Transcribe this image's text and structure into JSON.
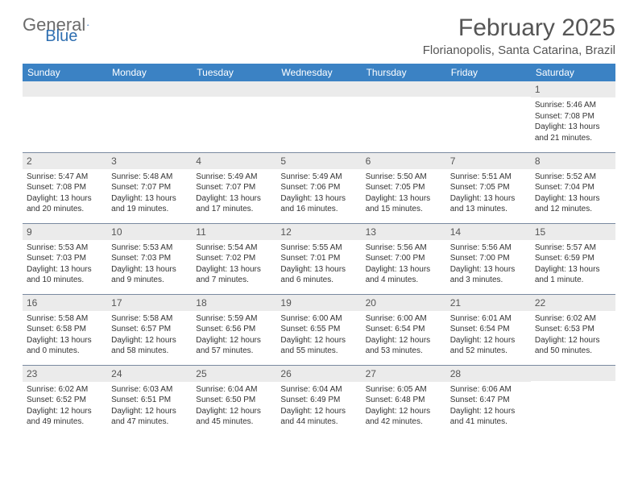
{
  "logo": {
    "text1": "General",
    "text2": "Blue"
  },
  "title": "February 2025",
  "location": "Florianopolis, Santa Catarina, Brazil",
  "header_color": "#3b82c4",
  "row_divider_color": "#7a8aa0",
  "daynum_bg": "#ebebeb",
  "weekdays": [
    "Sunday",
    "Monday",
    "Tuesday",
    "Wednesday",
    "Thursday",
    "Friday",
    "Saturday"
  ],
  "cells": [
    {
      "day": "",
      "sunrise": "",
      "sunset": "",
      "daylight": ""
    },
    {
      "day": "",
      "sunrise": "",
      "sunset": "",
      "daylight": ""
    },
    {
      "day": "",
      "sunrise": "",
      "sunset": "",
      "daylight": ""
    },
    {
      "day": "",
      "sunrise": "",
      "sunset": "",
      "daylight": ""
    },
    {
      "day": "",
      "sunrise": "",
      "sunset": "",
      "daylight": ""
    },
    {
      "day": "",
      "sunrise": "",
      "sunset": "",
      "daylight": ""
    },
    {
      "day": "1",
      "sunrise": "Sunrise: 5:46 AM",
      "sunset": "Sunset: 7:08 PM",
      "daylight": "Daylight: 13 hours and 21 minutes."
    },
    {
      "day": "2",
      "sunrise": "Sunrise: 5:47 AM",
      "sunset": "Sunset: 7:08 PM",
      "daylight": "Daylight: 13 hours and 20 minutes."
    },
    {
      "day": "3",
      "sunrise": "Sunrise: 5:48 AM",
      "sunset": "Sunset: 7:07 PM",
      "daylight": "Daylight: 13 hours and 19 minutes."
    },
    {
      "day": "4",
      "sunrise": "Sunrise: 5:49 AM",
      "sunset": "Sunset: 7:07 PM",
      "daylight": "Daylight: 13 hours and 17 minutes."
    },
    {
      "day": "5",
      "sunrise": "Sunrise: 5:49 AM",
      "sunset": "Sunset: 7:06 PM",
      "daylight": "Daylight: 13 hours and 16 minutes."
    },
    {
      "day": "6",
      "sunrise": "Sunrise: 5:50 AM",
      "sunset": "Sunset: 7:05 PM",
      "daylight": "Daylight: 13 hours and 15 minutes."
    },
    {
      "day": "7",
      "sunrise": "Sunrise: 5:51 AM",
      "sunset": "Sunset: 7:05 PM",
      "daylight": "Daylight: 13 hours and 13 minutes."
    },
    {
      "day": "8",
      "sunrise": "Sunrise: 5:52 AM",
      "sunset": "Sunset: 7:04 PM",
      "daylight": "Daylight: 13 hours and 12 minutes."
    },
    {
      "day": "9",
      "sunrise": "Sunrise: 5:53 AM",
      "sunset": "Sunset: 7:03 PM",
      "daylight": "Daylight: 13 hours and 10 minutes."
    },
    {
      "day": "10",
      "sunrise": "Sunrise: 5:53 AM",
      "sunset": "Sunset: 7:03 PM",
      "daylight": "Daylight: 13 hours and 9 minutes."
    },
    {
      "day": "11",
      "sunrise": "Sunrise: 5:54 AM",
      "sunset": "Sunset: 7:02 PM",
      "daylight": "Daylight: 13 hours and 7 minutes."
    },
    {
      "day": "12",
      "sunrise": "Sunrise: 5:55 AM",
      "sunset": "Sunset: 7:01 PM",
      "daylight": "Daylight: 13 hours and 6 minutes."
    },
    {
      "day": "13",
      "sunrise": "Sunrise: 5:56 AM",
      "sunset": "Sunset: 7:00 PM",
      "daylight": "Daylight: 13 hours and 4 minutes."
    },
    {
      "day": "14",
      "sunrise": "Sunrise: 5:56 AM",
      "sunset": "Sunset: 7:00 PM",
      "daylight": "Daylight: 13 hours and 3 minutes."
    },
    {
      "day": "15",
      "sunrise": "Sunrise: 5:57 AM",
      "sunset": "Sunset: 6:59 PM",
      "daylight": "Daylight: 13 hours and 1 minute."
    },
    {
      "day": "16",
      "sunrise": "Sunrise: 5:58 AM",
      "sunset": "Sunset: 6:58 PM",
      "daylight": "Daylight: 13 hours and 0 minutes."
    },
    {
      "day": "17",
      "sunrise": "Sunrise: 5:58 AM",
      "sunset": "Sunset: 6:57 PM",
      "daylight": "Daylight: 12 hours and 58 minutes."
    },
    {
      "day": "18",
      "sunrise": "Sunrise: 5:59 AM",
      "sunset": "Sunset: 6:56 PM",
      "daylight": "Daylight: 12 hours and 57 minutes."
    },
    {
      "day": "19",
      "sunrise": "Sunrise: 6:00 AM",
      "sunset": "Sunset: 6:55 PM",
      "daylight": "Daylight: 12 hours and 55 minutes."
    },
    {
      "day": "20",
      "sunrise": "Sunrise: 6:00 AM",
      "sunset": "Sunset: 6:54 PM",
      "daylight": "Daylight: 12 hours and 53 minutes."
    },
    {
      "day": "21",
      "sunrise": "Sunrise: 6:01 AM",
      "sunset": "Sunset: 6:54 PM",
      "daylight": "Daylight: 12 hours and 52 minutes."
    },
    {
      "day": "22",
      "sunrise": "Sunrise: 6:02 AM",
      "sunset": "Sunset: 6:53 PM",
      "daylight": "Daylight: 12 hours and 50 minutes."
    },
    {
      "day": "23",
      "sunrise": "Sunrise: 6:02 AM",
      "sunset": "Sunset: 6:52 PM",
      "daylight": "Daylight: 12 hours and 49 minutes."
    },
    {
      "day": "24",
      "sunrise": "Sunrise: 6:03 AM",
      "sunset": "Sunset: 6:51 PM",
      "daylight": "Daylight: 12 hours and 47 minutes."
    },
    {
      "day": "25",
      "sunrise": "Sunrise: 6:04 AM",
      "sunset": "Sunset: 6:50 PM",
      "daylight": "Daylight: 12 hours and 45 minutes."
    },
    {
      "day": "26",
      "sunrise": "Sunrise: 6:04 AM",
      "sunset": "Sunset: 6:49 PM",
      "daylight": "Daylight: 12 hours and 44 minutes."
    },
    {
      "day": "27",
      "sunrise": "Sunrise: 6:05 AM",
      "sunset": "Sunset: 6:48 PM",
      "daylight": "Daylight: 12 hours and 42 minutes."
    },
    {
      "day": "28",
      "sunrise": "Sunrise: 6:06 AM",
      "sunset": "Sunset: 6:47 PM",
      "daylight": "Daylight: 12 hours and 41 minutes."
    },
    {
      "day": "",
      "sunrise": "",
      "sunset": "",
      "daylight": ""
    }
  ]
}
